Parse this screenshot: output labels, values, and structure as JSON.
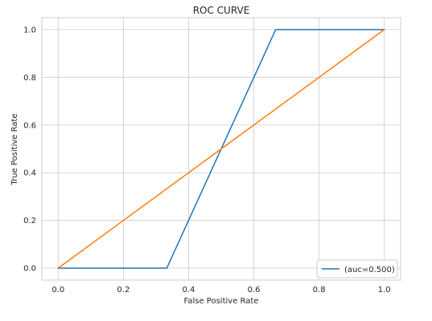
{
  "chart_data": {
    "type": "line",
    "title": "ROC CURVE",
    "xlabel": "False Positive Rate",
    "ylabel": "True Positive Rate",
    "xlim": [
      -0.05,
      1.05
    ],
    "ylim": [
      -0.05,
      1.05
    ],
    "xticks": [
      0.0,
      0.2,
      0.4,
      0.6,
      0.8,
      1.0
    ],
    "yticks": [
      0.0,
      0.2,
      0.4,
      0.6,
      0.8,
      1.0
    ],
    "xtick_labels": [
      "0.0",
      "0.2",
      "0.4",
      "0.6",
      "0.8",
      "1.0"
    ],
    "ytick_labels": [
      "0.0",
      "0.2",
      "0.4",
      "0.6",
      "0.8",
      "1.0"
    ],
    "grid": true,
    "legend_position": "lower-right",
    "series": [
      {
        "name": "(auc=0.500)",
        "color": "#1f77b4",
        "x": [
          0.0,
          0.333,
          0.667,
          1.0
        ],
        "y": [
          0.0,
          0.0,
          1.0,
          1.0
        ]
      },
      {
        "color": "#ff7f0e",
        "x": [
          0.0,
          1.0
        ],
        "y": [
          0.0,
          1.0
        ]
      }
    ]
  }
}
